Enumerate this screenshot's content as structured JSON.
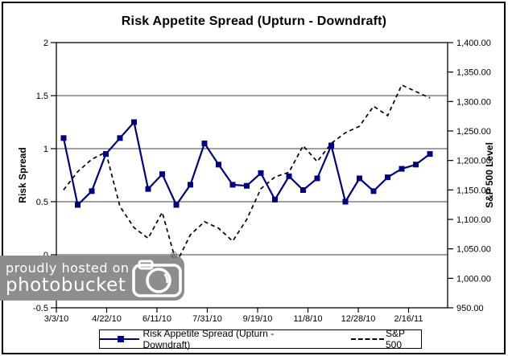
{
  "chart_data": {
    "type": "line",
    "title": "Risk Appetite Spread (Upturn - Downdraft)",
    "x_tick_labels": [
      "3/3/10",
      "4/22/10",
      "6/11/10",
      "7/31/10",
      "9/19/10",
      "11/8/10",
      "12/28/10",
      "2/16/11"
    ],
    "left_axis": {
      "title": "Risk Spread",
      "tick_labels": [
        "2",
        "1.5",
        "1",
        "0.5",
        "0",
        "-0.5"
      ],
      "min": -0.5,
      "max": 2,
      "step": 0.5
    },
    "right_axis": {
      "title": "S&P 500 Level",
      "tick_labels": [
        "1,400.00",
        "1,350.00",
        "1,300.00",
        "1,250.00",
        "1,200.00",
        "1,150.00",
        "1,100.00",
        "1,050.00",
        "1,000.00",
        "950.00"
      ],
      "min": 950,
      "max": 1400,
      "step": 50
    },
    "grid": "horizontal",
    "legend_position": "bottom",
    "series": [
      {
        "name": "Risk Appetite Spread (Upturn - Downdraft)",
        "axis": "left",
        "line_style": "solid",
        "marker": "square",
        "color": "#000080",
        "values": [
          1.1,
          0.47,
          0.6,
          0.95,
          1.1,
          1.25,
          0.62,
          0.76,
          0.47,
          0.66,
          1.05,
          0.85,
          0.66,
          0.65,
          0.77,
          0.52,
          0.74,
          0.61,
          0.72,
          1.03,
          0.5,
          0.72,
          0.6,
          0.73,
          0.81,
          0.85,
          0.95
        ]
      },
      {
        "name": "S&P 500",
        "axis": "right",
        "line_style": "dashed",
        "marker": "none",
        "color": "#000000",
        "values": [
          1150,
          1181,
          1202,
          1214,
          1122,
          1086,
          1068,
          1112,
          1026,
          1074,
          1096,
          1085,
          1063,
          1100,
          1152,
          1172,
          1180,
          1225,
          1198,
          1229,
          1247,
          1258,
          1292,
          1276,
          1328,
          1317,
          1306
        ]
      }
    ]
  },
  "watermark": {
    "line1": "proudly hosted on",
    "line2": "photobucket",
    "registered_symbol": "®"
  }
}
